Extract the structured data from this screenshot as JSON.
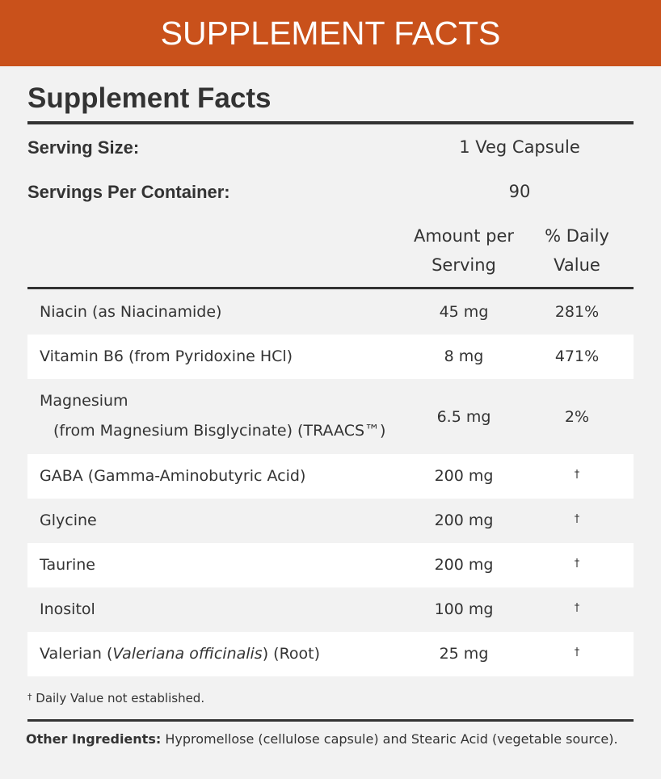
{
  "banner": {
    "title": "SUPPLEMENT FACTS"
  },
  "panel": {
    "title": "Supplement Facts",
    "serving_size_label": "Serving Size:",
    "serving_size_value": "1 Veg Capsule",
    "servings_label": "Servings Per Container:",
    "servings_value": "90",
    "col_amount_line1": "Amount per",
    "col_amount_line2": "Serving",
    "col_dv_line1": "% Daily",
    "col_dv_line2": "Value"
  },
  "rows": [
    {
      "name": "Niacin (as Niacinamide)",
      "amount": "45 mg",
      "dv": "281%"
    },
    {
      "name": "Vitamin B6 (from Pyridoxine HCl)",
      "amount": "8 mg",
      "dv": "471%"
    },
    {
      "name": "Magnesium",
      "name_sub": "(from Magnesium Bisglycinate) (TRAACS™)",
      "amount": "6.5 mg",
      "dv": "2%"
    },
    {
      "name": "GABA (Gamma-Aminobutyric Acid)",
      "amount": "200 mg",
      "dv": "†"
    },
    {
      "name": "Glycine",
      "amount": "200 mg",
      "dv": "†"
    },
    {
      "name": "Taurine",
      "amount": "200 mg",
      "dv": "†"
    },
    {
      "name": "Inositol",
      "amount": "100 mg",
      "dv": "†"
    },
    {
      "name_pre": "Valerian (",
      "name_italic": "Valeriana officinalis",
      "name_post": ") (Root)",
      "amount": "25 mg",
      "dv": "†"
    }
  ],
  "footnote": {
    "symbol": "†",
    "text": " Daily Value not established."
  },
  "other": {
    "label": "Other Ingredients:",
    "text": "  Hypromellose (cellulose capsule) and Stearic Acid (vegetable source)."
  },
  "colors": {
    "banner": "#c9511b",
    "background": "#f2f2f2",
    "text": "#333333",
    "row_alt": "#ffffff"
  }
}
